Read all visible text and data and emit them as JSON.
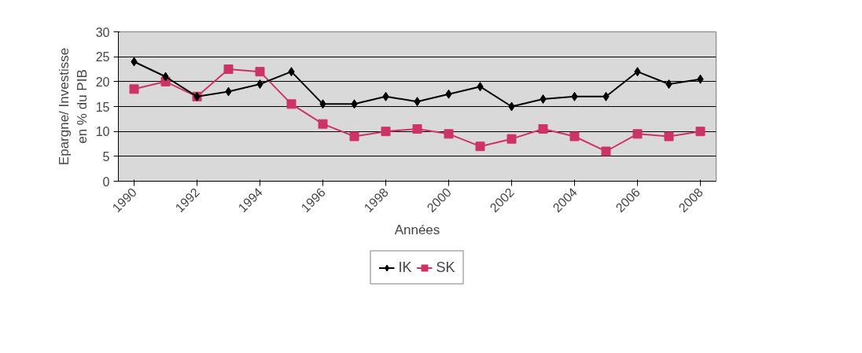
{
  "chart_data": {
    "type": "line",
    "xlabel": "Années",
    "ylabel": "Epargne/ Investisse\nen % du PIB",
    "categories": [
      "1990",
      null,
      "1992",
      null,
      "1994",
      null,
      "1996",
      null,
      "1998",
      null,
      "2000",
      null,
      "2002",
      null,
      "2004",
      null,
      "2006",
      null,
      "2008"
    ],
    "series": [
      {
        "name": "IK",
        "color": "#000000",
        "marker": "diamond",
        "values": [
          24,
          21,
          17,
          18,
          19.5,
          22,
          15.5,
          15.5,
          17,
          16,
          17.5,
          19,
          15,
          16.5,
          17,
          17,
          22,
          19.5,
          20.5
        ]
      },
      {
        "name": "SK",
        "color": "#cc3366",
        "marker": "square",
        "values": [
          18.5,
          20,
          17,
          22.5,
          22,
          15.5,
          11.5,
          9,
          10,
          10.5,
          9.5,
          7,
          8.5,
          10.5,
          9,
          6,
          9.5,
          9,
          10
        ]
      }
    ],
    "ylim": [
      0,
      30
    ],
    "yticks": [
      0,
      5,
      10,
      15,
      20,
      25,
      30
    ],
    "grid": "y",
    "legend": "bottom",
    "line_style": "solid"
  }
}
